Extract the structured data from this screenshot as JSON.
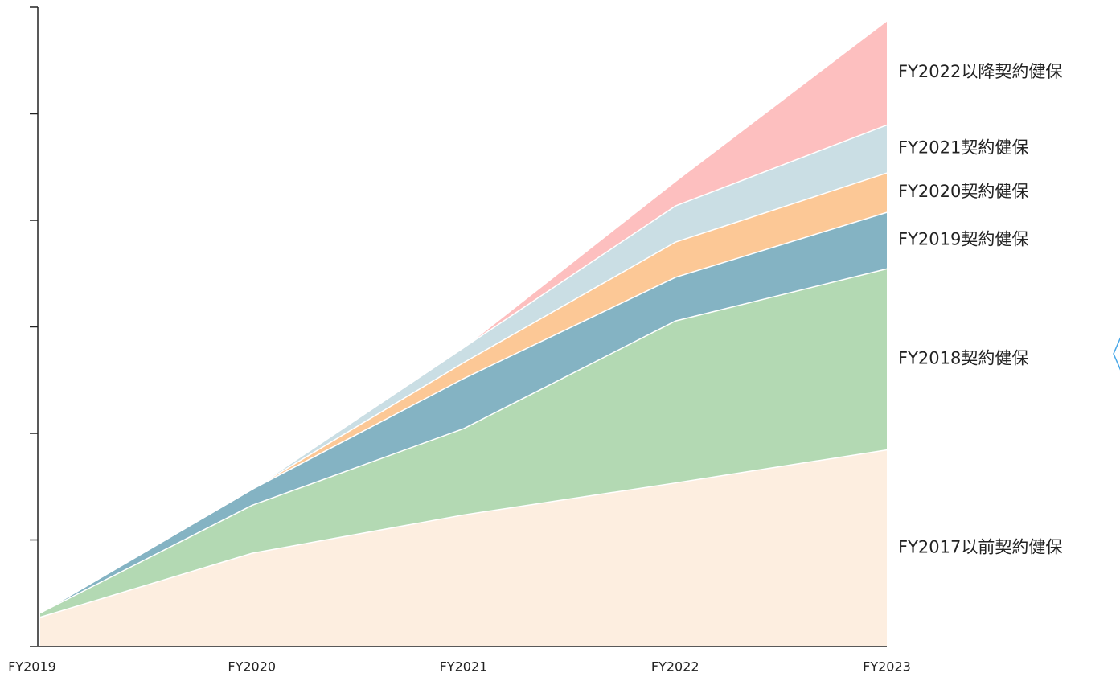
{
  "chart_data": {
    "type": "stacked_area",
    "categories": [
      "FY2019",
      "FY2020",
      "FY2021",
      "FY2022",
      "FY2023"
    ],
    "series": [
      {
        "name": "FY2017以前契約健保",
        "color": "#fdeee0",
        "values": [
          0.28,
          0.88,
          1.24,
          1.54,
          1.85
        ]
      },
      {
        "name": "FY2018契約健保",
        "color": "#b3d9b3",
        "values": [
          0.04,
          0.45,
          0.81,
          1.52,
          1.7
        ]
      },
      {
        "name": "FY2019契約健保",
        "color": "#84b3c3",
        "values": [
          0,
          0.15,
          0.47,
          0.41,
          0.53
        ]
      },
      {
        "name": "FY2020契約健保",
        "color": "#fcc896",
        "values": [
          0,
          0,
          0.15,
          0.33,
          0.37
        ]
      },
      {
        "name": "FY2021契約健保",
        "color": "#cadee4",
        "values": [
          0,
          0,
          0.14,
          0.34,
          0.45
        ]
      },
      {
        "name": "FY2022以降契約健保",
        "color": "#fdbfbf",
        "values": [
          0,
          0,
          0,
          0.23,
          0.98
        ]
      }
    ],
    "ylim": [
      0,
      6
    ],
    "yticks": [
      0,
      1,
      2,
      3,
      4,
      5,
      6
    ]
  }
}
